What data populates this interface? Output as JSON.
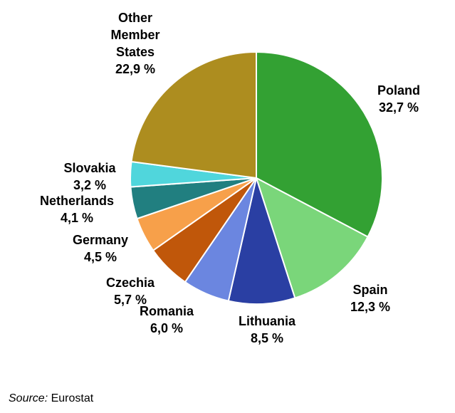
{
  "chart_data": {
    "type": "pie",
    "start_angle_deg": 0,
    "direction": "clockwise",
    "slices": [
      {
        "label_lines": [
          "Poland"
        ],
        "value": 32.7,
        "value_text": "32,7 %",
        "color": "#33a133"
      },
      {
        "label_lines": [
          "Spain"
        ],
        "value": 12.3,
        "value_text": "12,3 %",
        "color": "#7ad67a"
      },
      {
        "label_lines": [
          "Lithuania"
        ],
        "value": 8.5,
        "value_text": "8,5 %",
        "color": "#2a3fa3"
      },
      {
        "label_lines": [
          "Romania"
        ],
        "value": 6.0,
        "value_text": "6,0 %",
        "color": "#6b86e0"
      },
      {
        "label_lines": [
          "Czechia"
        ],
        "value": 5.7,
        "value_text": "5,7 %",
        "color": "#c0570a"
      },
      {
        "label_lines": [
          "Germany"
        ],
        "value": 4.5,
        "value_text": "4,5 %",
        "color": "#f7a04a"
      },
      {
        "label_lines": [
          "Netherlands"
        ],
        "value": 4.1,
        "value_text": "4,1 %",
        "color": "#217f80"
      },
      {
        "label_lines": [
          "Slovakia"
        ],
        "value": 3.2,
        "value_text": "3,2 %",
        "color": "#50d6dc"
      },
      {
        "label_lines": [
          "Other",
          "Member",
          "States"
        ],
        "value": 22.9,
        "value_text": "22,9 %",
        "color": "#ad8d1f"
      }
    ]
  },
  "source": {
    "prefix": "Source:",
    "text": "Eurostat"
  }
}
